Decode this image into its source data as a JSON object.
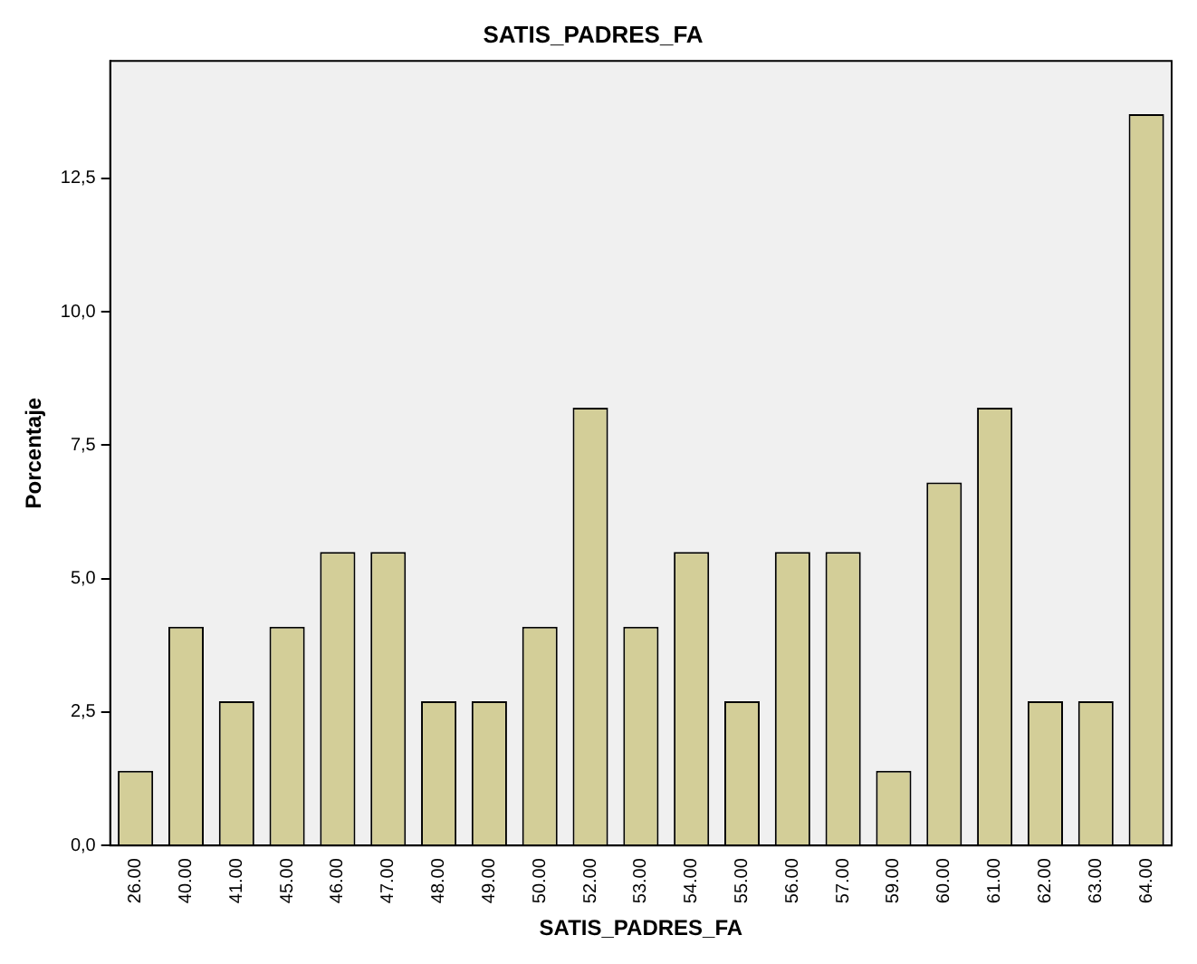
{
  "chart_data": {
    "type": "bar",
    "title": "SATIS_PADRES_FA",
    "xlabel": "SATIS_PADRES_FA",
    "ylabel": "Porcentaje",
    "categories": [
      "26.00",
      "40.00",
      "41.00",
      "45.00",
      "46.00",
      "47.00",
      "48.00",
      "49.00",
      "50.00",
      "52.00",
      "53.00",
      "54.00",
      "55.00",
      "56.00",
      "57.00",
      "59.00",
      "60.00",
      "61.00",
      "62.00",
      "63.00",
      "64.00"
    ],
    "values": [
      1.4,
      4.1,
      2.7,
      4.1,
      5.5,
      5.5,
      2.7,
      2.7,
      4.1,
      8.2,
      4.1,
      5.5,
      2.7,
      5.5,
      5.5,
      1.4,
      6.8,
      8.2,
      2.7,
      2.7,
      13.7
    ],
    "color": "#d3ce98",
    "ylim": [
      0,
      14.7
    ],
    "yticks": [
      {
        "value": 0,
        "label": "0,0"
      },
      {
        "value": 2.5,
        "label": "2,5"
      },
      {
        "value": 5,
        "label": "5,0"
      },
      {
        "value": 7.5,
        "label": "7,5"
      },
      {
        "value": 10,
        "label": "10,0"
      },
      {
        "value": 12.5,
        "label": "12,5"
      }
    ],
    "grid": false,
    "legend": false
  }
}
